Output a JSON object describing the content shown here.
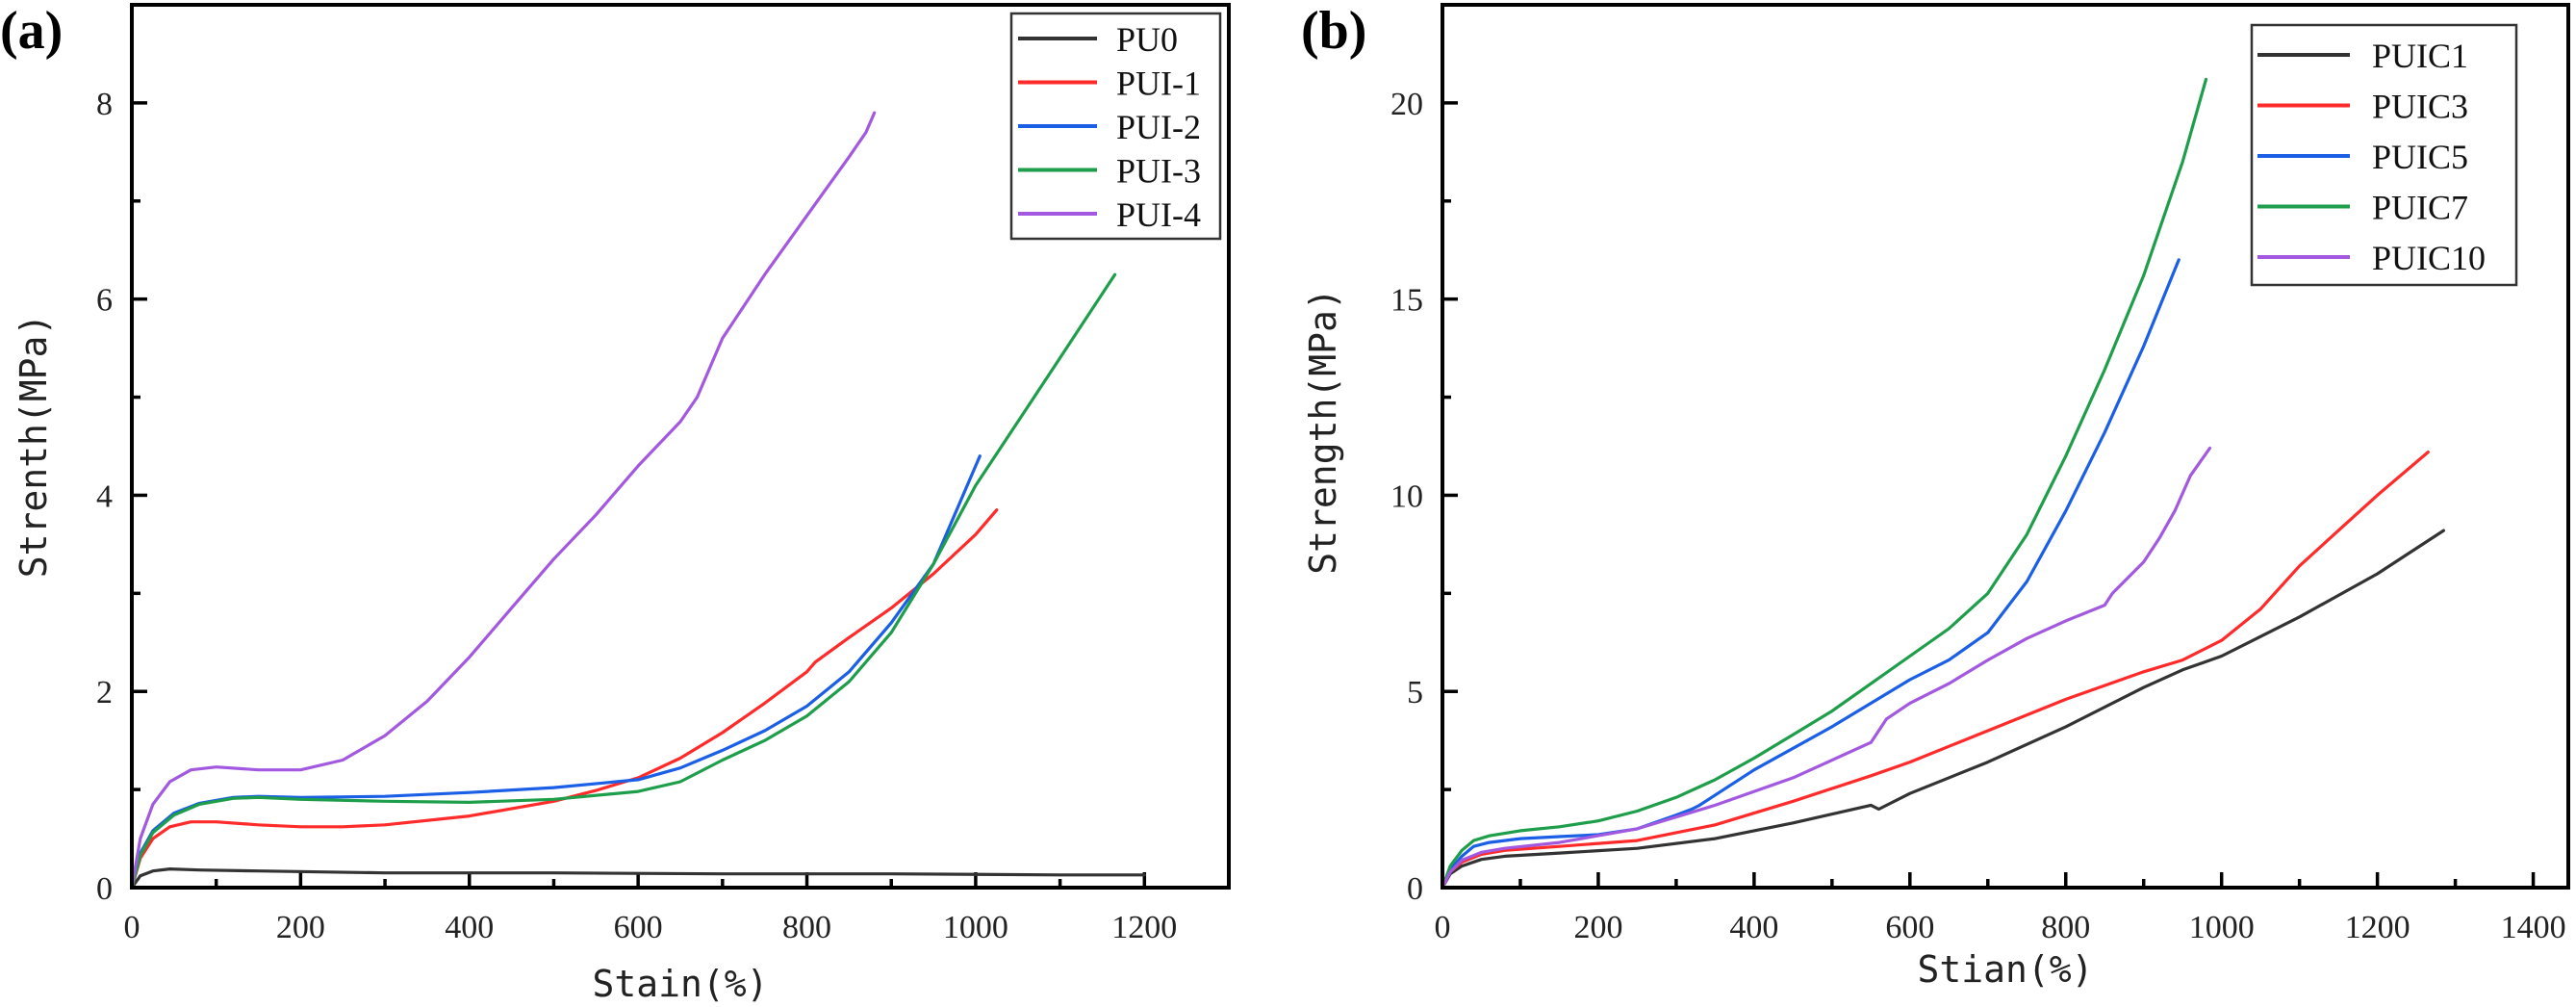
{
  "figure": {
    "panels": [
      "(a)",
      "(b)"
    ]
  },
  "chart_data": [
    {
      "type": "line",
      "panel_label": "(a)",
      "title": "",
      "xlabel": "Stain(%)",
      "ylabel": "Strenth(MPa)",
      "xlim": [
        0,
        1300
      ],
      "ylim": [
        0,
        9
      ],
      "xticks": [
        0,
        200,
        400,
        600,
        800,
        1000,
        1200
      ],
      "xminor": [
        100,
        300,
        500,
        700,
        900,
        1100
      ],
      "yticks": [
        0,
        2,
        4,
        6,
        8
      ],
      "yminor": [
        1,
        3,
        5,
        7
      ],
      "grid": false,
      "legend_position": "top-right",
      "series": [
        {
          "name": "PU0",
          "color": "#333333",
          "x": [
            0,
            10,
            25,
            45,
            80,
            150,
            300,
            500,
            700,
            900,
            1100,
            1200
          ],
          "y": [
            0,
            0.12,
            0.17,
            0.19,
            0.18,
            0.17,
            0.15,
            0.15,
            0.14,
            0.14,
            0.13,
            0.13
          ]
        },
        {
          "name": "PUI-1",
          "color": "#ff2a2a",
          "x": [
            0,
            10,
            25,
            45,
            70,
            100,
            150,
            200,
            250,
            300,
            400,
            500,
            550,
            600,
            650,
            700,
            750,
            800,
            810,
            850,
            900,
            950,
            1000,
            1025
          ],
          "y": [
            0,
            0.3,
            0.5,
            0.62,
            0.67,
            0.67,
            0.64,
            0.62,
            0.62,
            0.64,
            0.73,
            0.88,
            0.99,
            1.12,
            1.32,
            1.58,
            1.88,
            2.2,
            2.3,
            2.55,
            2.85,
            3.2,
            3.6,
            3.85
          ]
        },
        {
          "name": "PUI-2",
          "color": "#1a5fe6",
          "x": [
            0,
            10,
            25,
            50,
            80,
            120,
            150,
            200,
            300,
            400,
            500,
            600,
            650,
            700,
            750,
            800,
            850,
            900,
            950,
            980,
            1005
          ],
          "y": [
            0,
            0.35,
            0.58,
            0.76,
            0.86,
            0.92,
            0.93,
            0.92,
            0.93,
            0.97,
            1.02,
            1.1,
            1.22,
            1.4,
            1.6,
            1.85,
            2.2,
            2.7,
            3.3,
            3.9,
            4.4
          ]
        },
        {
          "name": "PUI-3",
          "color": "#1e9e4a",
          "x": [
            0,
            10,
            25,
            50,
            80,
            120,
            150,
            200,
            300,
            400,
            500,
            600,
            650,
            700,
            750,
            800,
            850,
            900,
            950,
            1000,
            1050,
            1100,
            1165
          ],
          "y": [
            0,
            0.33,
            0.56,
            0.74,
            0.85,
            0.91,
            0.92,
            0.9,
            0.88,
            0.87,
            0.9,
            0.98,
            1.08,
            1.3,
            1.5,
            1.75,
            2.1,
            2.6,
            3.3,
            4.1,
            4.75,
            5.4,
            6.25
          ]
        },
        {
          "name": "PUI-4",
          "color": "#a259e0",
          "x": [
            0,
            10,
            25,
            45,
            70,
            100,
            150,
            200,
            250,
            300,
            350,
            400,
            450,
            500,
            550,
            600,
            650,
            670,
            700,
            750,
            800,
            850,
            870,
            880
          ],
          "y": [
            0,
            0.5,
            0.85,
            1.08,
            1.2,
            1.23,
            1.2,
            1.2,
            1.3,
            1.55,
            1.9,
            2.35,
            2.85,
            3.35,
            3.8,
            4.3,
            4.75,
            5.0,
            5.6,
            6.25,
            6.85,
            7.45,
            7.7,
            7.9
          ]
        }
      ]
    },
    {
      "type": "line",
      "panel_label": "(b)",
      "title": "",
      "xlabel": "Stian(%)",
      "ylabel": "Strength(MPa)",
      "xlim": [
        0,
        1445
      ],
      "ylim": [
        0,
        22.5
      ],
      "xticks": [
        0,
        200,
        400,
        600,
        800,
        1000,
        1200,
        1400
      ],
      "xminor": [
        100,
        300,
        500,
        700,
        900,
        1100,
        1300
      ],
      "yticks": [
        0,
        5,
        10,
        15,
        20
      ],
      "yminor": [
        2.5,
        7.5,
        12.5,
        17.5
      ],
      "grid": false,
      "legend_position": "top-right",
      "series": [
        {
          "name": "PUIC1",
          "color": "#333333",
          "x": [
            0,
            10,
            25,
            50,
            80,
            150,
            250,
            350,
            450,
            550,
            560,
            600,
            700,
            800,
            900,
            950,
            1000,
            1050,
            1100,
            1200,
            1285
          ],
          "y": [
            0,
            0.35,
            0.55,
            0.72,
            0.8,
            0.88,
            1.0,
            1.25,
            1.65,
            2.1,
            2.0,
            2.4,
            3.2,
            4.1,
            5.1,
            5.55,
            5.9,
            6.4,
            6.9,
            8.0,
            9.1
          ]
        },
        {
          "name": "PUIC3",
          "color": "#ff2a2a",
          "x": [
            0,
            10,
            25,
            50,
            80,
            150,
            250,
            350,
            450,
            550,
            600,
            700,
            800,
            900,
            950,
            1000,
            1050,
            1100,
            1150,
            1200,
            1265
          ],
          "y": [
            0,
            0.4,
            0.65,
            0.85,
            0.95,
            1.05,
            1.2,
            1.6,
            2.2,
            2.85,
            3.2,
            4.0,
            4.8,
            5.5,
            5.8,
            6.3,
            7.1,
            8.2,
            9.1,
            10.0,
            11.1
          ]
        },
        {
          "name": "PUIC5",
          "color": "#1a5fe6",
          "x": [
            0,
            10,
            25,
            40,
            60,
            100,
            150,
            200,
            250,
            300,
            320,
            330,
            400,
            500,
            600,
            650,
            700,
            750,
            800,
            850,
            900,
            945
          ],
          "y": [
            0,
            0.45,
            0.8,
            1.05,
            1.15,
            1.25,
            1.3,
            1.35,
            1.5,
            1.85,
            2.0,
            2.1,
            3.0,
            4.1,
            5.3,
            5.8,
            6.5,
            7.8,
            9.6,
            11.6,
            13.8,
            16.0
          ]
        },
        {
          "name": "PUIC7",
          "color": "#1e9e4a",
          "x": [
            0,
            10,
            25,
            40,
            60,
            100,
            150,
            200,
            250,
            300,
            350,
            400,
            450,
            500,
            550,
            600,
            650,
            700,
            750,
            800,
            850,
            900,
            950,
            980
          ],
          "y": [
            0,
            0.55,
            0.95,
            1.2,
            1.32,
            1.45,
            1.55,
            1.7,
            1.95,
            2.3,
            2.75,
            3.3,
            3.9,
            4.5,
            5.2,
            5.9,
            6.6,
            7.5,
            9.0,
            11.0,
            13.2,
            15.6,
            18.5,
            20.6
          ]
        },
        {
          "name": "PUIC10",
          "color": "#a259e0",
          "x": [
            0,
            10,
            25,
            50,
            80,
            150,
            250,
            350,
            450,
            550,
            560,
            570,
            600,
            650,
            700,
            750,
            800,
            850,
            860,
            880,
            900,
            920,
            940,
            960,
            985
          ],
          "y": [
            0,
            0.4,
            0.7,
            0.9,
            1.0,
            1.15,
            1.5,
            2.1,
            2.8,
            3.7,
            4.0,
            4.3,
            4.7,
            5.2,
            5.8,
            6.35,
            6.8,
            7.2,
            7.5,
            7.9,
            8.3,
            8.9,
            9.6,
            10.5,
            11.2
          ]
        }
      ]
    }
  ]
}
